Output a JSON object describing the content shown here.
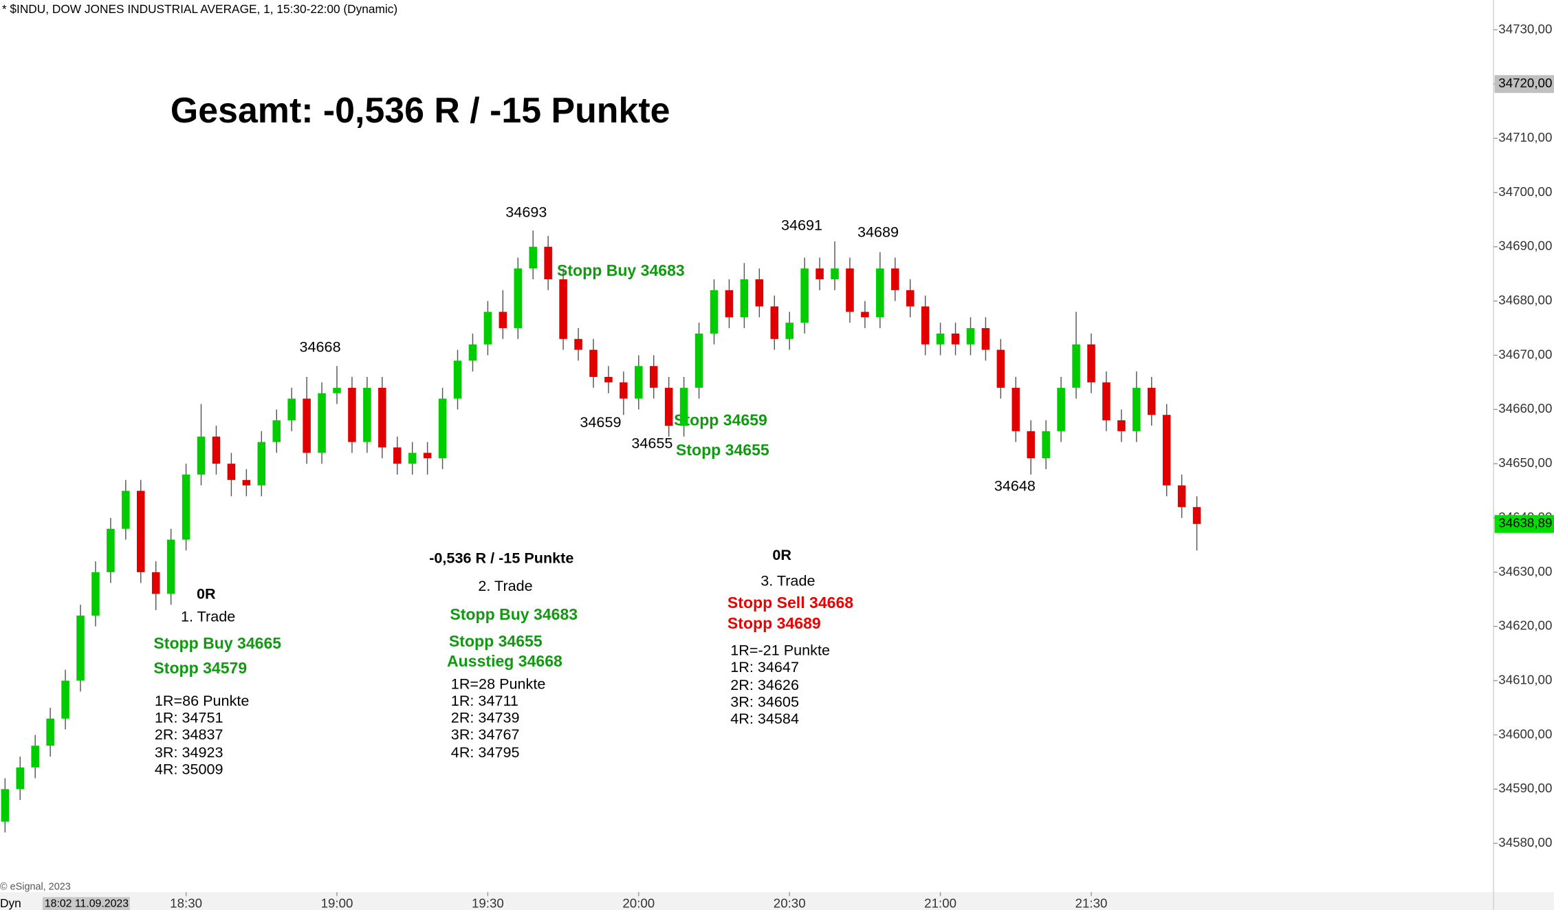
{
  "chart_data": {
    "type": "candlestick",
    "header": "* $INDU, DOW JONES INDUSTRIAL AVERAGE, 1, 15:30-22:00 (Dynamic)",
    "title": "Gesamt: -0,536 R / -15 Punkte",
    "copyright": "© eSignal, 2023",
    "footer_mode": "Dyn",
    "footer_time": "18:02 11.09.2023",
    "up_color": "#00cc00",
    "down_color": "#e00000",
    "x": [
      "17:54",
      "17:57",
      "18:00",
      "18:03",
      "18:06",
      "18:09",
      "18:12",
      "18:15",
      "18:18",
      "18:21",
      "18:24",
      "18:27",
      "18:30",
      "18:33",
      "18:36",
      "18:39",
      "18:42",
      "18:45",
      "18:48",
      "18:51",
      "18:54",
      "18:57",
      "19:00",
      "19:03",
      "19:06",
      "19:09",
      "19:12",
      "19:15",
      "19:18",
      "19:21",
      "19:24",
      "19:27",
      "19:30",
      "19:33",
      "19:36",
      "19:39",
      "19:42",
      "19:45",
      "19:48",
      "19:51",
      "19:54",
      "19:57",
      "20:00",
      "20:03",
      "20:06",
      "20:09",
      "20:12",
      "20:15",
      "20:18",
      "20:21",
      "20:24",
      "20:27",
      "20:30",
      "20:33",
      "20:36",
      "20:39",
      "20:42",
      "20:45",
      "20:48",
      "20:51",
      "20:54",
      "20:57",
      "21:00",
      "21:03",
      "21:06",
      "21:09",
      "21:12",
      "21:15",
      "21:18",
      "21:21",
      "21:24",
      "21:27",
      "21:30",
      "21:33",
      "21:36",
      "21:39",
      "21:42",
      "21:45",
      "21:48",
      "21:51"
    ],
    "open": [
      34584,
      34590,
      34594,
      34598,
      34603,
      34610,
      34622,
      34630,
      34638,
      34645,
      34630,
      34626,
      34636,
      34648,
      34655,
      34650,
      34647,
      34646,
      34654,
      34658,
      34662,
      34652,
      34663,
      34664,
      34654,
      34664,
      34653,
      34650,
      34652,
      34651,
      34662,
      34669,
      34672,
      34678,
      34675,
      34686,
      34690,
      34684,
      34673,
      34671,
      34666,
      34665,
      34662,
      34668,
      34664,
      34657,
      34664,
      34674,
      34682,
      34677,
      34684,
      34679,
      34673,
      34676,
      34686,
      34684,
      34686,
      34678,
      34677,
      34686,
      34682,
      34679,
      34672,
      34674,
      34672,
      34675,
      34671,
      34664,
      34656,
      34651,
      34656,
      34664,
      34672,
      34665,
      34658,
      34656,
      34664,
      34659,
      34646,
      34642
    ],
    "high": [
      34592,
      34596,
      34600,
      34605,
      34612,
      34624,
      34632,
      34640,
      34647,
      34647,
      34632,
      34638,
      34650,
      34661,
      34657,
      34652,
      34649,
      34656,
      34660,
      34664,
      34666,
      34665,
      34668,
      34666,
      34666,
      34666,
      34655,
      34654,
      34654,
      34664,
      34671,
      34674,
      34680,
      34682,
      34688,
      34693,
      34692,
      34686,
      34675,
      34673,
      34668,
      34667,
      34670,
      34670,
      34666,
      34666,
      34676,
      34684,
      34684,
      34687,
      34686,
      34681,
      34678,
      34688,
      34688,
      34691,
      34688,
      34680,
      34689,
      34688,
      34684,
      34681,
      34676,
      34676,
      34677,
      34677,
      34673,
      34666,
      34658,
      34658,
      34666,
      34678,
      34674,
      34667,
      34660,
      34667,
      34666,
      34661,
      34648,
      34644
    ],
    "low": [
      34582,
      34588,
      34592,
      34596,
      34601,
      34608,
      34620,
      34628,
      34636,
      34628,
      34623,
      34624,
      34634,
      34646,
      34648,
      34644,
      34644,
      34644,
      34652,
      34656,
      34650,
      34650,
      34661,
      34652,
      34652,
      34651,
      34648,
      34648,
      34648,
      34649,
      34660,
      34667,
      34670,
      34673,
      34673,
      34684,
      34682,
      34671,
      34669,
      34664,
      34663,
      34659,
      34660,
      34662,
      34655,
      34655,
      34662,
      34672,
      34675,
      34675,
      34677,
      34671,
      34671,
      34674,
      34682,
      34682,
      34676,
      34675,
      34675,
      34680,
      34677,
      34670,
      34670,
      34670,
      34670,
      34669,
      34662,
      34654,
      34648,
      34649,
      34654,
      34662,
      34663,
      34656,
      34654,
      34654,
      34657,
      34644,
      34640,
      34634
    ],
    "close": [
      34590,
      34594,
      34598,
      34603,
      34610,
      34622,
      34630,
      34638,
      34645,
      34630,
      34626,
      34636,
      34648,
      34655,
      34650,
      34647,
      34646,
      34654,
      34658,
      34662,
      34652,
      34663,
      34664,
      34654,
      34664,
      34653,
      34650,
      34652,
      34651,
      34662,
      34669,
      34672,
      34678,
      34675,
      34686,
      34690,
      34684,
      34673,
      34671,
      34666,
      34665,
      34662,
      34668,
      34664,
      34657,
      34664,
      34674,
      34682,
      34677,
      34684,
      34679,
      34673,
      34676,
      34686,
      34684,
      34686,
      34678,
      34677,
      34686,
      34682,
      34679,
      34672,
      34674,
      34672,
      34675,
      34671,
      34664,
      34656,
      34651,
      34656,
      34664,
      34672,
      34665,
      34658,
      34656,
      34664,
      34659,
      34646,
      34642,
      34638.89
    ],
    "xlim": [
      "17:53",
      "22:50"
    ],
    "xticks": [
      "18:30",
      "19:00",
      "19:30",
      "20:00",
      "20:30",
      "21:00",
      "21:30"
    ],
    "ylim": [
      34571,
      34735.5
    ],
    "yticks": [
      {
        "value": 34580,
        "label": "34580,00"
      },
      {
        "value": 34590,
        "label": "34590,00"
      },
      {
        "value": 34600,
        "label": "34600,00"
      },
      {
        "value": 34610,
        "label": "34610,00"
      },
      {
        "value": 34620,
        "label": "34620,00"
      },
      {
        "value": 34630,
        "label": "34630,00"
      },
      {
        "value": 34640,
        "label": "34640,00"
      },
      {
        "value": 34650,
        "label": "34650,00"
      },
      {
        "value": 34660,
        "label": "34660,00"
      },
      {
        "value": 34670,
        "label": "34670,00"
      },
      {
        "value": 34680,
        "label": "34680,00"
      },
      {
        "value": 34690,
        "label": "34690,00"
      },
      {
        "value": 34700,
        "label": "34700,00"
      },
      {
        "value": 34710,
        "label": "34710,00"
      },
      {
        "value": 34720,
        "label": "34720,00"
      },
      {
        "value": 34730,
        "label": "34730,00"
      }
    ],
    "price_labels": [
      {
        "value": 34720,
        "label": "34720,00",
        "color": "#c0c0c0"
      },
      {
        "value": 34638.89,
        "label": "34638,89",
        "color": "#00dd00"
      }
    ],
    "annotations": {
      "levels": [
        "34668",
        "34693",
        "34659",
        "34655",
        "34691",
        "34689",
        "34648"
      ],
      "notes": [
        "Stopp Buy 34683",
        "Stopp 34659",
        "Stopp 34655"
      ],
      "trade1": {
        "result": "0R",
        "name": "1. Trade",
        "entry": "Stopp Buy 34665",
        "stop": "Stopp 34579",
        "lines": [
          "1R=86 Punkte",
          "1R: 34751",
          "2R: 34837",
          "3R: 34923",
          "4R: 35009"
        ]
      },
      "trade2": {
        "result": "-0,536 R / -15 Punkte",
        "name": "2. Trade",
        "entry": "Stopp Buy 34683",
        "stop": "Stopp 34655",
        "exit": "Ausstieg 34668",
        "lines": [
          "1R=28 Punkte",
          "1R: 34711",
          "2R: 34739",
          "3R: 34767",
          "4R: 34795"
        ]
      },
      "trade3": {
        "result": "0R",
        "name": "3. Trade",
        "entry": "Stopp Sell 34668",
        "stop": "Stopp 34689",
        "lines": [
          "1R=-21 Punkte",
          "1R: 34647",
          "2R: 34626",
          "3R: 34605",
          "4R: 34584"
        ]
      }
    }
  }
}
